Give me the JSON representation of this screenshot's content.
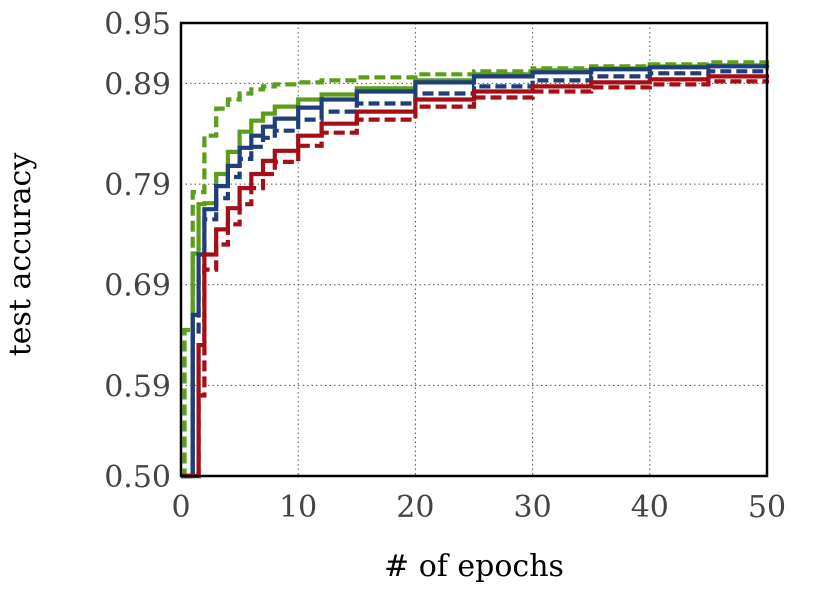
{
  "chart_data": {
    "type": "line",
    "title": "",
    "xlabel": "# of epochs",
    "ylabel": "test accuracy",
    "xlim": [
      0,
      50
    ],
    "ylim": [
      0.5,
      0.95
    ],
    "xticks": [
      0,
      10,
      20,
      30,
      40,
      50
    ],
    "xtick_labels": [
      "0",
      "10",
      "20",
      "30",
      "40",
      "50"
    ],
    "yticks": [
      0.5,
      0.59,
      0.69,
      0.79,
      0.89,
      0.95
    ],
    "ytick_labels": [
      "0.50",
      "0.59",
      "0.69",
      "0.79",
      "0.89",
      "0.95"
    ],
    "grid": true,
    "legend": "none",
    "step": true,
    "series": [
      {
        "color": "#5a9e1a",
        "dash": "dashed",
        "x": [
          0,
          0.3,
          1,
          2,
          3,
          4,
          5,
          6,
          7,
          8,
          10,
          12,
          15,
          20,
          25,
          30,
          35,
          40,
          45,
          50
        ],
        "y": [
          0.5,
          0.645,
          0.782,
          0.838,
          0.865,
          0.874,
          0.88,
          0.884,
          0.887,
          0.889,
          0.891,
          0.893,
          0.896,
          0.899,
          0.902,
          0.905,
          0.907,
          0.909,
          0.911,
          0.913
        ]
      },
      {
        "color": "#5a9e1a",
        "dash": "solid",
        "x": [
          0,
          1,
          1.5,
          2,
          3,
          4,
          5,
          6,
          7,
          8,
          10,
          12,
          15,
          20,
          25,
          30,
          35,
          40,
          45,
          50
        ],
        "y": [
          0.5,
          0.721,
          0.77,
          0.771,
          0.8,
          0.822,
          0.842,
          0.853,
          0.86,
          0.867,
          0.874,
          0.879,
          0.885,
          0.893,
          0.899,
          0.903,
          0.905,
          0.907,
          0.908,
          0.91
        ]
      },
      {
        "color": "#1f3f7a",
        "dash": "solid",
        "x": [
          0,
          1,
          1.5,
          2,
          3,
          4,
          5,
          6,
          7,
          8,
          10,
          12,
          15,
          20,
          25,
          30,
          35,
          40,
          45,
          50
        ],
        "y": [
          0.5,
          0.66,
          0.72,
          0.765,
          0.788,
          0.808,
          0.826,
          0.838,
          0.847,
          0.855,
          0.866,
          0.874,
          0.882,
          0.891,
          0.897,
          0.901,
          0.904,
          0.906,
          0.907,
          0.908
        ]
      },
      {
        "color": "#1f3f7a",
        "dash": "dashed",
        "x": [
          0,
          1,
          1.5,
          2,
          3,
          4,
          5,
          6,
          7,
          8,
          10,
          12,
          15,
          20,
          25,
          30,
          35,
          40,
          45,
          50
        ],
        "y": [
          0.5,
          0.64,
          0.7,
          0.755,
          0.776,
          0.797,
          0.815,
          0.827,
          0.836,
          0.843,
          0.854,
          0.862,
          0.87,
          0.88,
          0.887,
          0.893,
          0.897,
          0.9,
          0.902,
          0.904
        ]
      },
      {
        "color": "#a50e16",
        "dash": "solid",
        "x": [
          0,
          1.5,
          2,
          3,
          4,
          5,
          6,
          7,
          8,
          10,
          12,
          15,
          20,
          25,
          30,
          35,
          40,
          45,
          50
        ],
        "y": [
          0.5,
          0.63,
          0.72,
          0.745,
          0.766,
          0.786,
          0.8,
          0.813,
          0.823,
          0.838,
          0.85,
          0.862,
          0.874,
          0.882,
          0.887,
          0.891,
          0.894,
          0.897,
          0.899
        ]
      },
      {
        "color": "#a50e16",
        "dash": "dashed",
        "x": [
          0,
          1.5,
          2,
          3,
          4,
          5,
          6,
          7,
          8,
          10,
          12,
          15,
          20,
          25,
          30,
          35,
          40,
          45,
          50
        ],
        "y": [
          0.5,
          0.58,
          0.705,
          0.73,
          0.75,
          0.77,
          0.786,
          0.8,
          0.812,
          0.828,
          0.841,
          0.854,
          0.867,
          0.876,
          0.882,
          0.886,
          0.889,
          0.892,
          0.894
        ]
      }
    ]
  }
}
